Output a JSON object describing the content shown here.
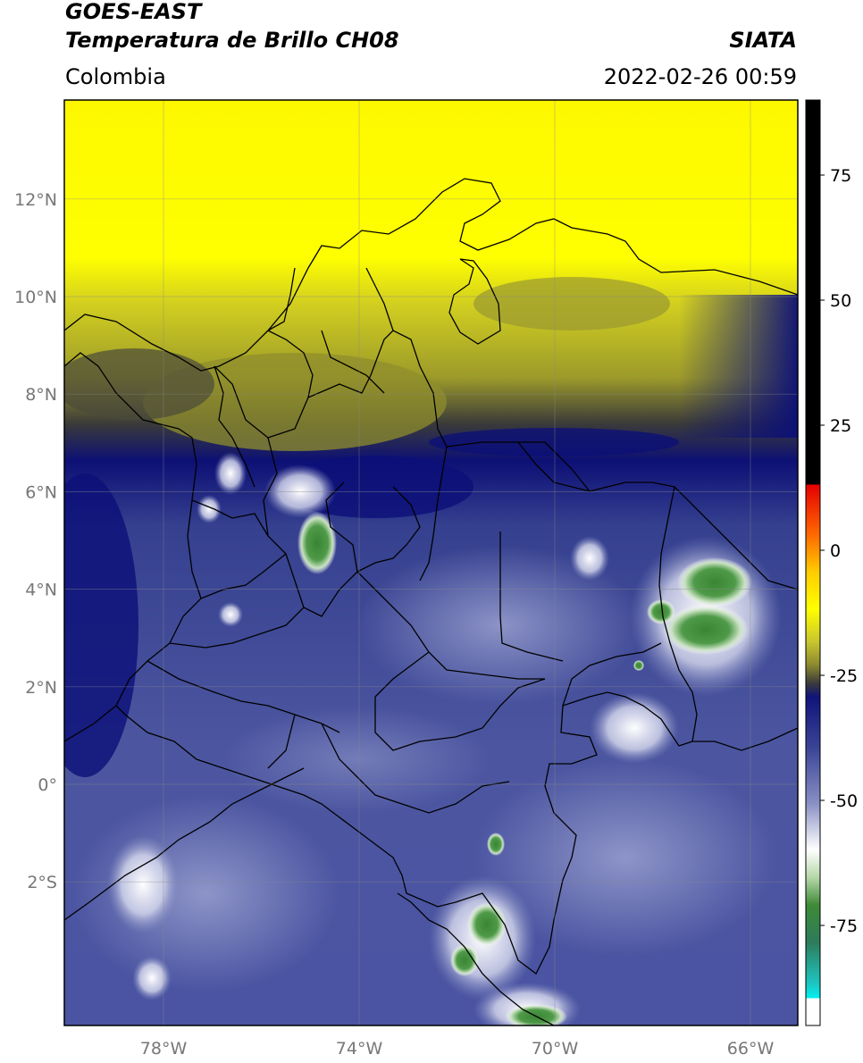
{
  "header": {
    "satellite": "GOES-EAST",
    "product": "Temperatura de Brillo CH08",
    "region": "Colombia",
    "agency": "SIATA",
    "datetime": "2022-02-26 00:59"
  },
  "map": {
    "lon_range": [
      -80,
      -65
    ],
    "lat_range": [
      -5,
      14
    ],
    "lat_ticks": [
      {
        "value": 12,
        "label": "12°N"
      },
      {
        "value": 10,
        "label": "10°N"
      },
      {
        "value": 8,
        "label": "8°N"
      },
      {
        "value": 6,
        "label": "6°N"
      },
      {
        "value": 4,
        "label": "4°N"
      },
      {
        "value": 2,
        "label": "2°N"
      },
      {
        "value": 0,
        "label": "0°"
      },
      {
        "value": -2,
        "label": "2°S"
      }
    ],
    "lon_ticks": [
      {
        "value": -78,
        "label": "78°W"
      },
      {
        "value": -74,
        "label": "74°W"
      },
      {
        "value": -70,
        "label": "70°W"
      },
      {
        "value": -66,
        "label": "66°W"
      }
    ],
    "colors": {
      "deep_blue": "#0b0f78",
      "blue": "#3d4796",
      "light_blue": "#8a91c4",
      "white": "#ffffff",
      "green": "#3f8a3a",
      "dark_olive": "#3d3d2a",
      "olive": "#a8a62a",
      "yellow": "#ffff00"
    }
  },
  "colorbar": {
    "range": [
      -95,
      90
    ],
    "ticks": [
      {
        "value": 75,
        "label": "75"
      },
      {
        "value": 50,
        "label": "50"
      },
      {
        "value": 25,
        "label": "25"
      },
      {
        "value": 0,
        "label": "0"
      },
      {
        "value": -25,
        "label": "-25"
      },
      {
        "value": -50,
        "label": "-50"
      },
      {
        "value": -75,
        "label": "-75"
      }
    ]
  }
}
